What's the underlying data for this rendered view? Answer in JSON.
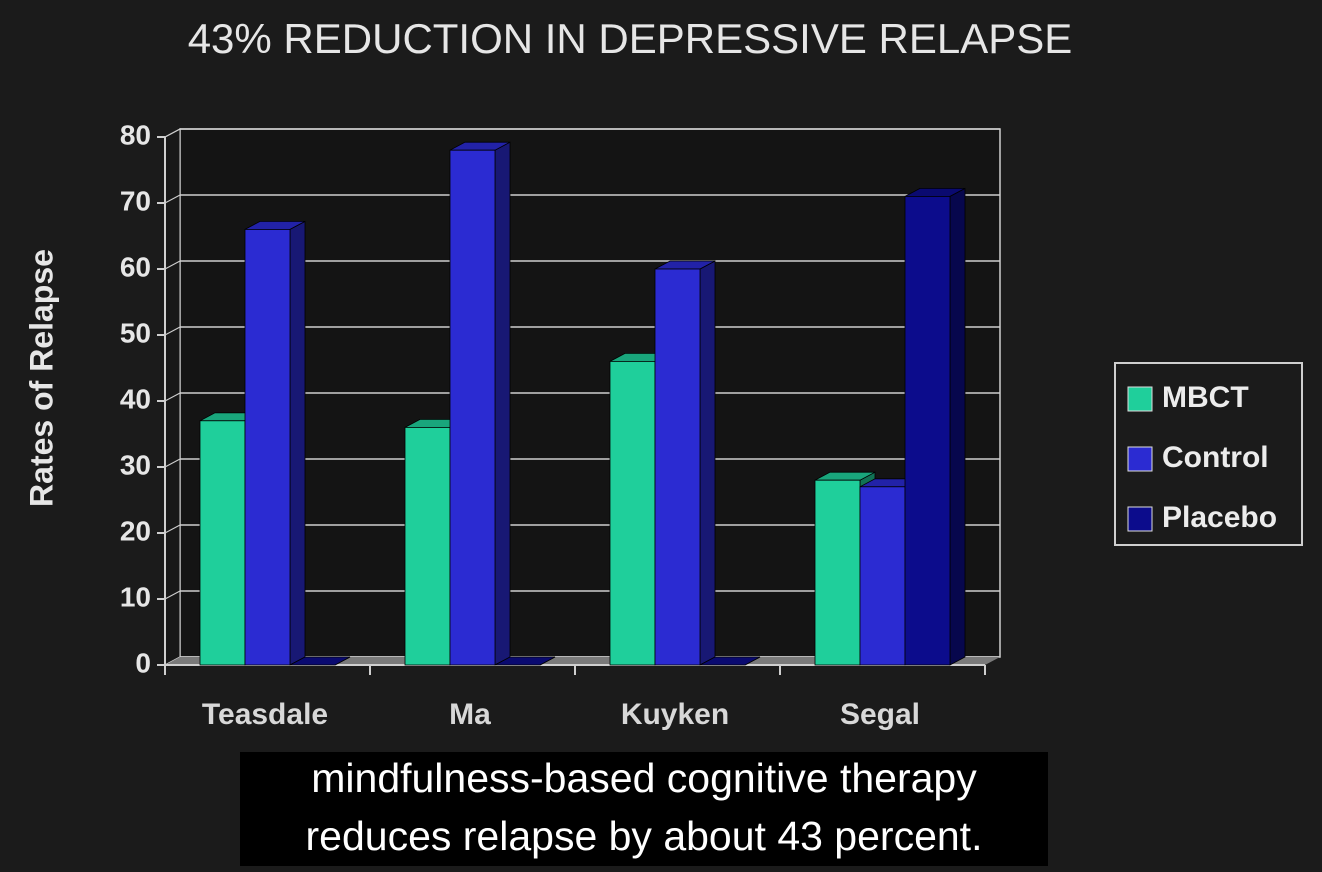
{
  "chart_data": {
    "type": "bar3d",
    "title": "43% REDUCTION IN DEPRESSIVE RELAPSE",
    "y_label": "Rates of Relapse",
    "categories": [
      "Teasdale",
      "Ma",
      "Kuyken",
      "Segal"
    ],
    "series": [
      {
        "name": "MBCT",
        "color": "#1fcf9b",
        "values": [
          37,
          36,
          46,
          28
        ]
      },
      {
        "name": "Control",
        "color": "#2b2bd2",
        "values": [
          66,
          78,
          60,
          27
        ]
      },
      {
        "name": "Placebo",
        "color": "#0c0c8c",
        "values": [
          0,
          0,
          0,
          71
        ]
      }
    ],
    "ylim": [
      0,
      80
    ],
    "yticks": [
      0,
      10,
      20,
      30,
      40,
      50,
      60,
      70,
      80
    ],
    "grid": true,
    "legend": "right"
  },
  "caption": [
    "mindfulness-based cognitive therapy",
    "reduces relapse by about 43 percent."
  ]
}
